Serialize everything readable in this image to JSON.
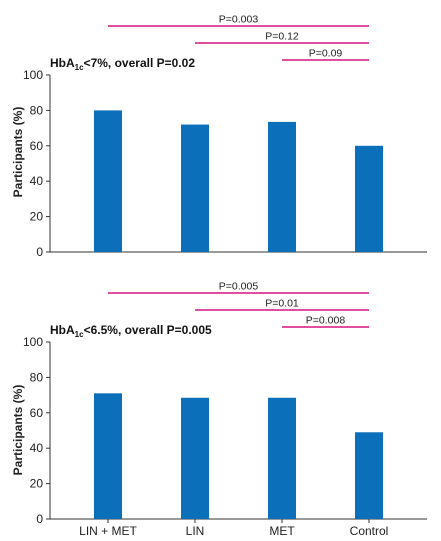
{
  "colors": {
    "bar": "#0b6fba",
    "bracket": "#d4177e",
    "axis": "#333333"
  },
  "chart_data": [
    {
      "type": "bar",
      "title_main": "HbA",
      "title_sub": "1c",
      "title_rest": "<7%, overall P=0.02",
      "ylabel": "Participants (%)",
      "categories": [
        "LIN + MET",
        "LIN",
        "MET",
        "Control"
      ],
      "values": [
        80,
        72,
        73.5,
        60
      ],
      "ylim": [
        0,
        100
      ],
      "yticks": [
        "0",
        "20",
        "40",
        "60",
        "80",
        "100"
      ],
      "show_xticks": false,
      "comparisons": [
        {
          "from": 0,
          "to": 3,
          "label": "P=0.003"
        },
        {
          "from": 1,
          "to": 3,
          "label": "P=0.12"
        },
        {
          "from": 2,
          "to": 3,
          "label": "P=0.09"
        }
      ]
    },
    {
      "type": "bar",
      "title_main": "HbA",
      "title_sub": "1c",
      "title_rest": "<6.5%, overall P=0.005",
      "ylabel": "Participants (%)",
      "categories": [
        "LIN + MET",
        "LIN",
        "MET",
        "Control"
      ],
      "values": [
        71,
        68.5,
        68.5,
        49
      ],
      "ylim": [
        0,
        100
      ],
      "yticks": [
        "0",
        "20",
        "40",
        "60",
        "80",
        "100"
      ],
      "show_xticks": true,
      "comparisons": [
        {
          "from": 0,
          "to": 3,
          "label": "P=0.005"
        },
        {
          "from": 1,
          "to": 3,
          "label": "P=0.01"
        },
        {
          "from": 2,
          "to": 3,
          "label": "P=0.008"
        }
      ]
    }
  ]
}
